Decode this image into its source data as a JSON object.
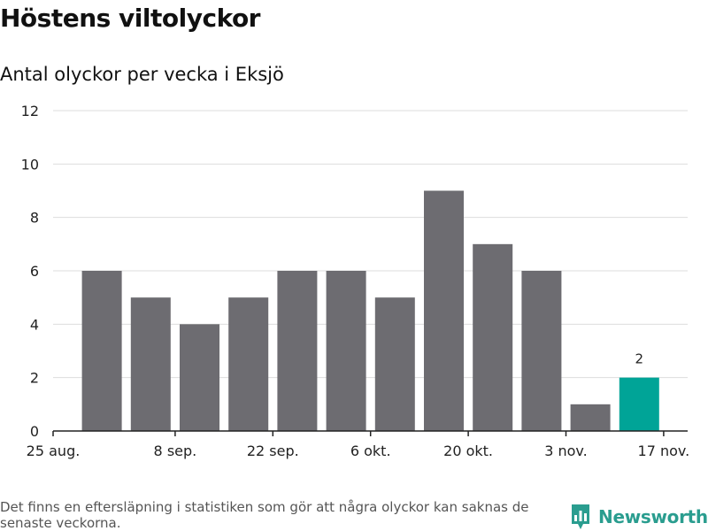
{
  "title": "Höstens viltolyckor",
  "subtitle": "Antal olyckor per vecka i Eksjö",
  "footnote": "Det finns en eftersläpning i statistiken som gör att några olyckor kan saknas de senaste veckorna.",
  "brand": {
    "name": "Newsworthy",
    "icon": "bar-chart-pin-icon"
  },
  "colors": {
    "bar": "#6d6c71",
    "highlight": "#00a497",
    "grid": "#dddddd",
    "axis": "#222222",
    "brand": "#2a9d8f"
  },
  "chart_data": {
    "type": "bar",
    "title": "Höstens viltolyckor",
    "subtitle": "Antal olyckor per vecka i Eksjö",
    "xlabel": "",
    "ylabel": "",
    "ylim": [
      0,
      12
    ],
    "yticks": [
      0,
      2,
      4,
      6,
      8,
      10,
      12
    ],
    "grid": true,
    "x_tick_labels": [
      {
        "index": 0,
        "label": "25 aug."
      },
      {
        "index": 2,
        "label": "8 sep."
      },
      {
        "index": 4,
        "label": "22 sep."
      },
      {
        "index": 6,
        "label": "6 okt."
      },
      {
        "index": 8,
        "label": "20 okt."
      },
      {
        "index": 10,
        "label": "3 nov."
      },
      {
        "index": 12,
        "label": "17 nov."
      }
    ],
    "values": [
      6,
      5,
      4,
      5,
      6,
      6,
      5,
      9,
      7,
      6,
      1,
      2
    ],
    "highlight_index": 11,
    "data_labels": [
      {
        "index": 11,
        "label": "2"
      }
    ]
  }
}
